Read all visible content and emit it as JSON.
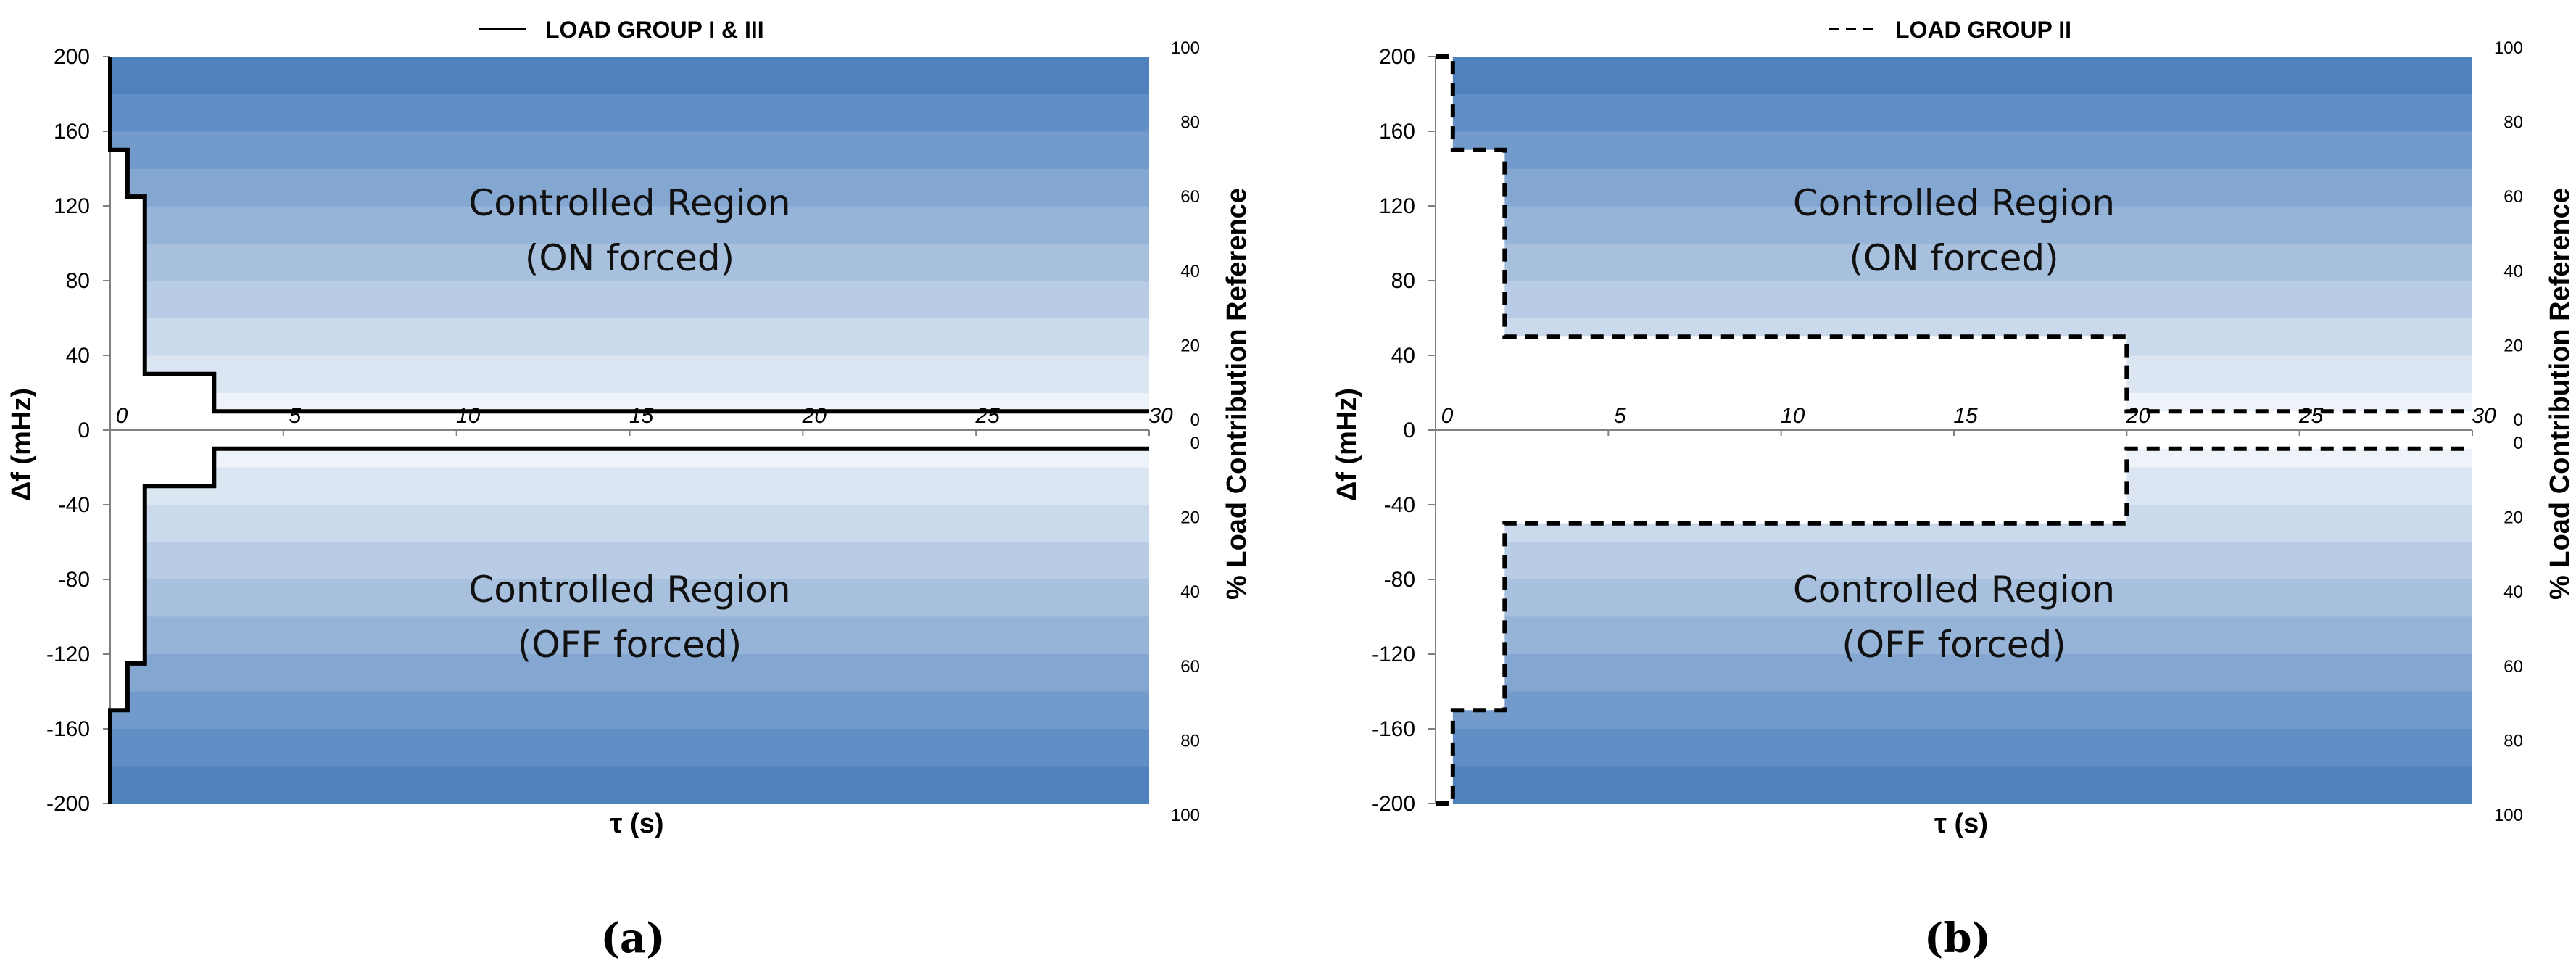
{
  "chart_data": [
    {
      "type": "step",
      "panel_label": "(a)",
      "legend": [
        {
          "name": "LOAD GROUP I & III",
          "style": "solid"
        }
      ],
      "xlabel": "τ (s)",
      "ylabel": "Δf (mHz)",
      "y2label": "% Load Contribution Reference",
      "xlim": [
        0,
        30
      ],
      "ylim": [
        -200,
        200
      ],
      "x_ticks": [
        "0",
        "5",
        "10",
        "15",
        "20",
        "25",
        "30"
      ],
      "y_ticks": [
        "200",
        "160",
        "120",
        "80",
        "40",
        "0",
        "-40",
        "-80",
        "-120",
        "-160",
        "-200"
      ],
      "y2_upper_ticks": [
        "100",
        "80",
        "60",
        "40",
        "20",
        "0"
      ],
      "y2_lower_ticks": [
        "0",
        "20",
        "40",
        "60",
        "80",
        "100"
      ],
      "annotations": [
        {
          "line1": "Controlled Region",
          "line2": "(ON forced)",
          "x": 15,
          "y": 115
        },
        {
          "line1": "Controlled Region",
          "line2": "(OFF forced)",
          "x": 15,
          "y": -92
        }
      ],
      "series": [
        {
          "dash": "solid",
          "upper": [
            {
              "x": 0,
              "y": 200
            },
            {
              "x": 0,
              "y": 150
            },
            {
              "x": 0.5,
              "y": 150
            },
            {
              "x": 0.5,
              "y": 125
            },
            {
              "x": 1,
              "y": 125
            },
            {
              "x": 1,
              "y": 30
            },
            {
              "x": 3,
              "y": 30
            },
            {
              "x": 3,
              "y": 10
            },
            {
              "x": 30,
              "y": 10
            }
          ],
          "lower": [
            {
              "x": 0,
              "y": -200
            },
            {
              "x": 0,
              "y": -150
            },
            {
              "x": 0.5,
              "y": -150
            },
            {
              "x": 0.5,
              "y": -125
            },
            {
              "x": 1,
              "y": -125
            },
            {
              "x": 1,
              "y": -30
            },
            {
              "x": 3,
              "y": -30
            },
            {
              "x": 3,
              "y": -10
            },
            {
              "x": 30,
              "y": -10
            }
          ]
        }
      ]
    },
    {
      "type": "step",
      "panel_label": "(b)",
      "legend": [
        {
          "name": "LOAD GROUP II",
          "style": "dashed"
        }
      ],
      "xlabel": "τ (s)",
      "ylabel": "Δf (mHz)",
      "y2label": "% Load Contribution Reference",
      "xlim": [
        0,
        30
      ],
      "ylim": [
        -200,
        200
      ],
      "x_ticks": [
        "0",
        "5",
        "10",
        "15",
        "20",
        "25",
        "30"
      ],
      "y_ticks": [
        "200",
        "160",
        "120",
        "80",
        "40",
        "0",
        "-40",
        "-80",
        "-120",
        "-160",
        "-200"
      ],
      "y2_upper_ticks": [
        "100",
        "80",
        "60",
        "40",
        "20",
        "0"
      ],
      "y2_lower_ticks": [
        "0",
        "20",
        "40",
        "60",
        "80",
        "100"
      ],
      "annotations": [
        {
          "line1": "Controlled Region",
          "line2": "(ON forced)",
          "x": 15,
          "y": 115
        },
        {
          "line1": "Controlled Region",
          "line2": "(OFF forced)",
          "x": 15,
          "y": -92
        }
      ],
      "series": [
        {
          "dash": "dashed",
          "upper": [
            {
              "x": 0,
              "y": 200
            },
            {
              "x": 0.5,
              "y": 200
            },
            {
              "x": 0.5,
              "y": 150
            },
            {
              "x": 2,
              "y": 150
            },
            {
              "x": 2,
              "y": 50
            },
            {
              "x": 20,
              "y": 50
            },
            {
              "x": 20,
              "y": 10
            },
            {
              "x": 30,
              "y": 10
            }
          ],
          "lower": [
            {
              "x": 0,
              "y": -200
            },
            {
              "x": 0.5,
              "y": -200
            },
            {
              "x": 0.5,
              "y": -150
            },
            {
              "x": 2,
              "y": -150
            },
            {
              "x": 2,
              "y": -50
            },
            {
              "x": 20,
              "y": -50
            },
            {
              "x": 20,
              "y": -10
            },
            {
              "x": 30,
              "y": -10
            }
          ]
        }
      ]
    }
  ],
  "colors": {
    "band_light": "#eef2f9",
    "band_dark": "#4f81bd",
    "line": "#000000",
    "axis": "#808080"
  }
}
